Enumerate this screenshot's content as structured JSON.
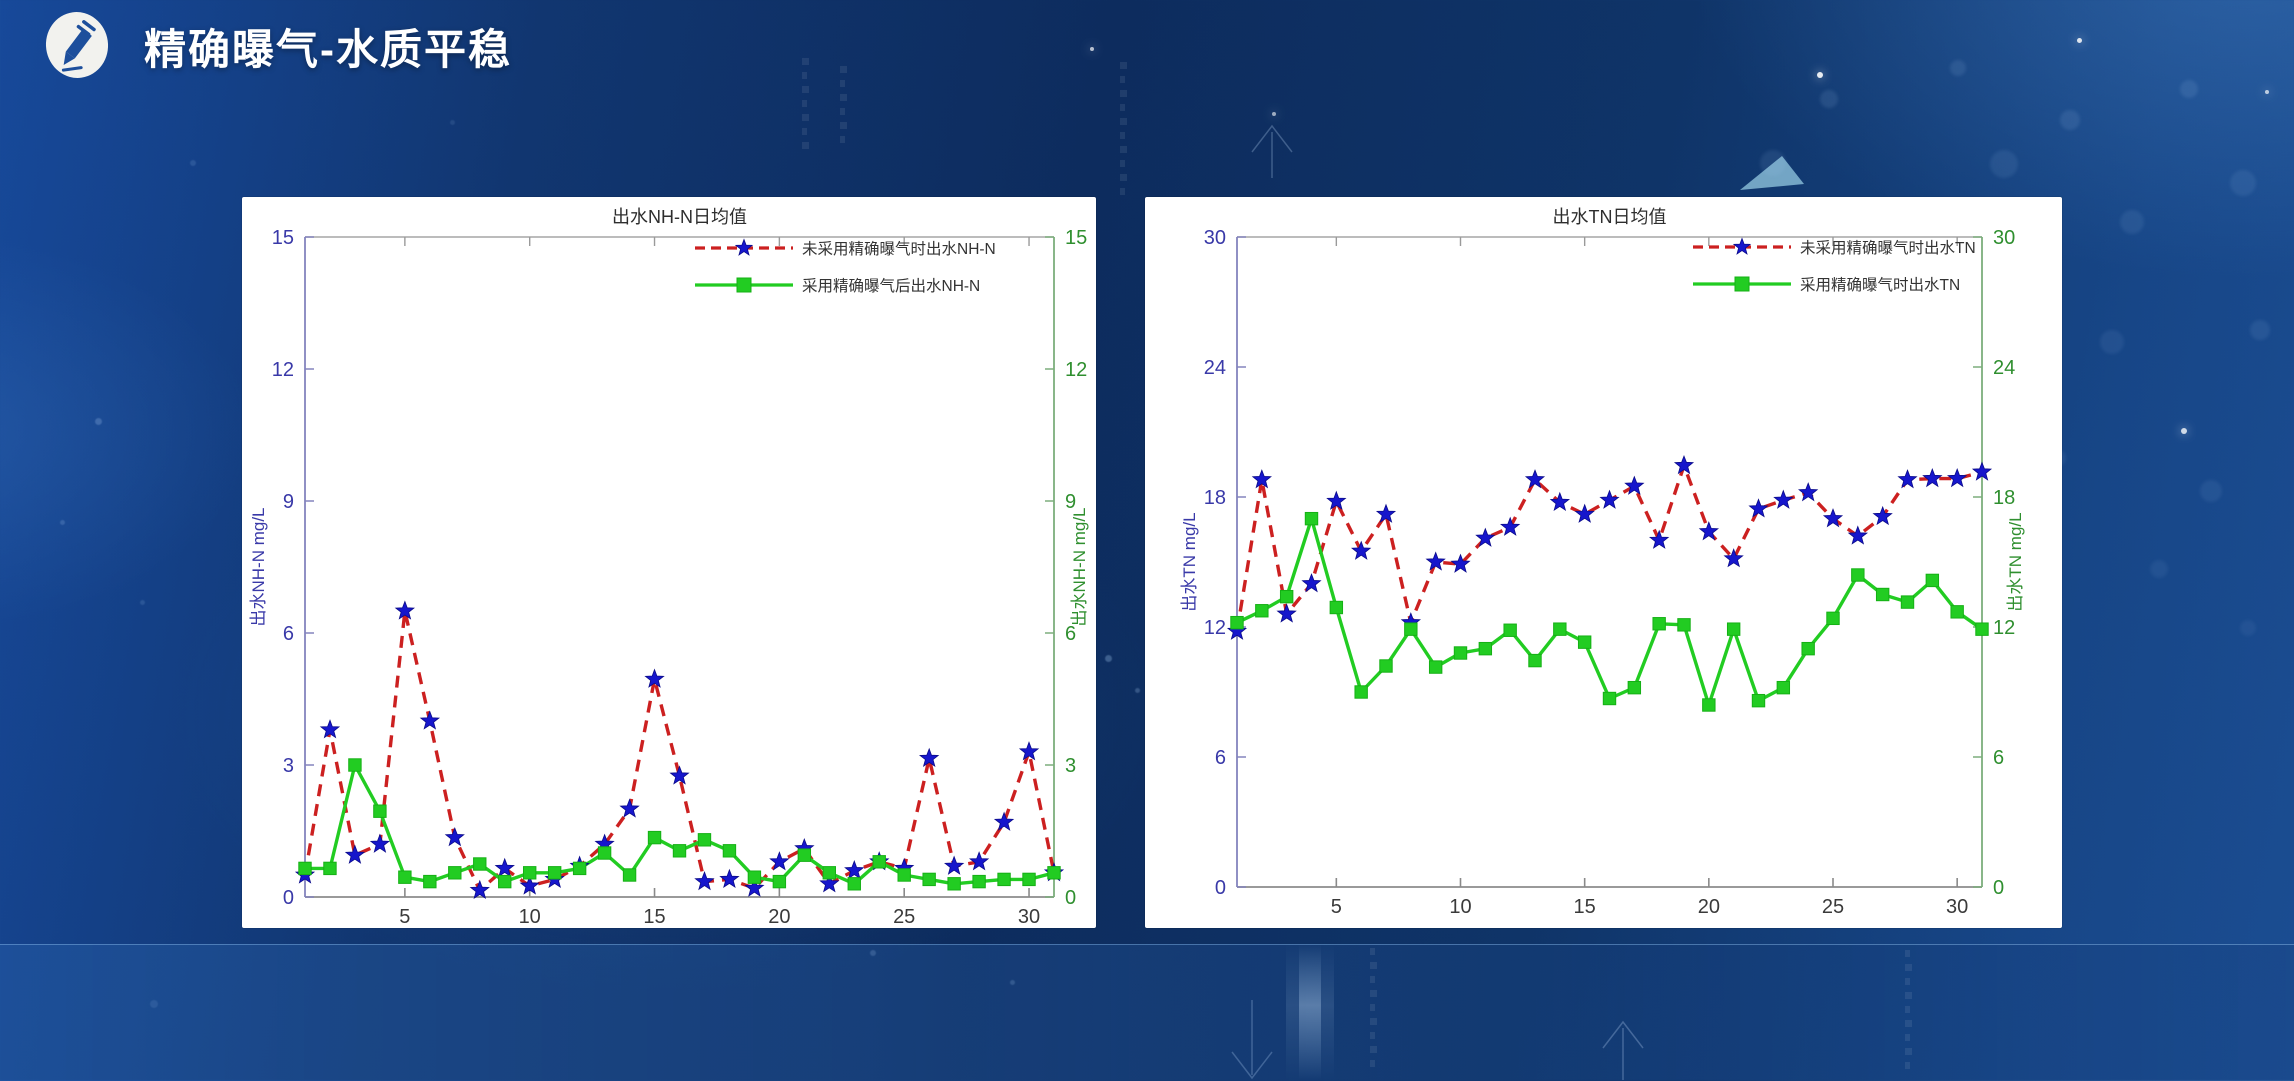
{
  "slide": {
    "title": "精确曝气-水质平稳",
    "icon": "pencil-icon"
  },
  "colors": {
    "slide_background": "#0f3468",
    "panel_background": "#ffffff",
    "no_aeration_line": "#cc2020",
    "no_aeration_marker": "#1616cc",
    "aeration_line": "#22cc22",
    "left_axis_text": "#3939a8",
    "right_axis_text": "#2f8f2f",
    "tick_text": "#3a3a3a",
    "chart_title_text": "#2e2e2e"
  },
  "chart_data": [
    {
      "type": "line",
      "title": "出水NH-N日均值",
      "xlim": [
        1,
        31
      ],
      "xticks": [
        5,
        10,
        15,
        20,
        25,
        30
      ],
      "ylim": [
        0,
        15
      ],
      "yticks": [
        0,
        3,
        6,
        9,
        12,
        15
      ],
      "ylabel_left": "出水NH-N  mg/L",
      "ylabel_right": "出水NH-N  mg/L",
      "grid": false,
      "legend_position": "upper right inside, no frame",
      "x": [
        1,
        2,
        3,
        4,
        5,
        6,
        7,
        8,
        9,
        10,
        11,
        12,
        13,
        14,
        15,
        16,
        17,
        18,
        19,
        20,
        21,
        22,
        23,
        24,
        25,
        26,
        27,
        28,
        29,
        30,
        31
      ],
      "series": [
        {
          "name": "未采用精确曝气时出水NH-N",
          "line_style": "dashed",
          "line_color": "#cc2020",
          "marker": "pentagram-star",
          "marker_color": "#1616cc",
          "values": [
            0.5,
            3.8,
            0.95,
            1.2,
            6.5,
            4.0,
            1.35,
            0.15,
            0.65,
            0.25,
            0.4,
            0.7,
            1.2,
            2.0,
            4.95,
            2.75,
            0.35,
            0.4,
            0.2,
            0.8,
            1.1,
            0.3,
            0.6,
            0.8,
            0.65,
            3.15,
            0.7,
            0.8,
            1.7,
            3.3,
            0.55
          ]
        },
        {
          "name": "采用精确曝气后出水NH-N",
          "line_style": "solid",
          "line_color": "#22cc22",
          "marker": "square",
          "marker_color": "#22cc22",
          "values": [
            0.65,
            0.65,
            3.0,
            1.95,
            0.45,
            0.35,
            0.55,
            0.75,
            0.35,
            0.55,
            0.55,
            0.65,
            1.0,
            0.5,
            1.35,
            1.05,
            1.3,
            1.05,
            0.45,
            0.35,
            0.95,
            0.55,
            0.3,
            0.8,
            0.5,
            0.4,
            0.3,
            0.35,
            0.4,
            0.4,
            0.55
          ]
        }
      ]
    },
    {
      "type": "line",
      "title": "出水TN日均值",
      "xlim": [
        1,
        31
      ],
      "xticks": [
        5,
        10,
        15,
        20,
        25,
        30
      ],
      "ylim": [
        0,
        30
      ],
      "yticks": [
        0,
        6,
        12,
        18,
        24,
        30
      ],
      "ylabel_left": "出水TN  mg/L",
      "ylabel_right": "出水TN  mg/L",
      "grid": false,
      "legend_position": "upper right inside, no frame",
      "x": [
        1,
        2,
        3,
        4,
        5,
        6,
        7,
        8,
        9,
        10,
        11,
        12,
        13,
        14,
        15,
        16,
        17,
        18,
        19,
        20,
        21,
        22,
        23,
        24,
        25,
        26,
        27,
        28,
        29,
        30,
        31
      ],
      "series": [
        {
          "name": "未采用精确曝气时出水TN",
          "line_style": "dashed",
          "line_color": "#cc2020",
          "marker": "pentagram-star",
          "marker_color": "#1616cc",
          "values": [
            11.8,
            18.8,
            12.6,
            14.0,
            17.8,
            15.5,
            17.2,
            12.2,
            15.0,
            14.9,
            16.1,
            16.6,
            18.8,
            17.75,
            17.2,
            17.85,
            18.5,
            16.0,
            19.45,
            16.4,
            15.15,
            17.45,
            17.85,
            18.2,
            17.0,
            16.2,
            17.1,
            18.8,
            18.85,
            18.85,
            19.15
          ]
        },
        {
          "name": "采用精确曝气时出水TN",
          "line_style": "solid",
          "line_color": "#22cc22",
          "marker": "square",
          "marker_color": "#22cc22",
          "values": [
            12.2,
            12.75,
            13.4,
            17.0,
            12.9,
            9.0,
            10.2,
            11.9,
            10.15,
            10.8,
            11.0,
            11.85,
            10.45,
            11.9,
            11.3,
            8.7,
            9.2,
            12.15,
            12.1,
            8.4,
            11.9,
            8.6,
            9.2,
            11.0,
            12.4,
            14.4,
            13.5,
            13.15,
            14.15,
            12.7,
            11.9
          ]
        }
      ]
    }
  ]
}
